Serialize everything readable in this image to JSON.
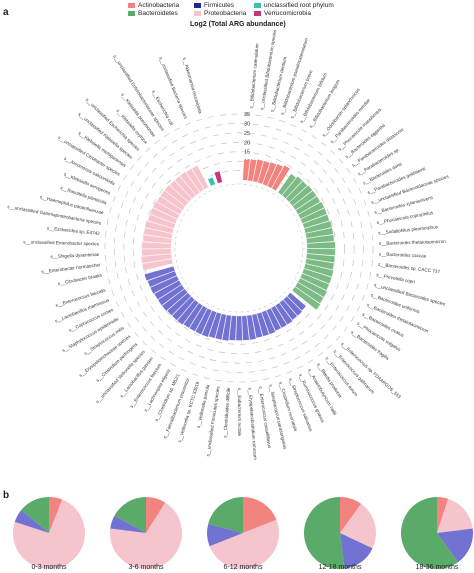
{
  "panel_labels": {
    "a": "a",
    "b": "b"
  },
  "legend": [
    {
      "label": "Actinobacteria",
      "color": "#f2837f"
    },
    {
      "label": "Bacteroidetes",
      "color": "#5aab6a"
    },
    {
      "label": "Firmicutes",
      "color": "#1e2a8f"
    },
    {
      "label": "Proteobacteria",
      "color": "#f6c4cc"
    },
    {
      "label": "unclassified root phylum",
      "color": "#39c0b0"
    },
    {
      "label": "Verrucomicrobia",
      "color": "#c03a7a"
    }
  ],
  "chart_data": [
    {
      "type": "bar",
      "layout": "circular",
      "title": "Log2 (Total ARG abundance)",
      "ylim": [
        0,
        35
      ],
      "yticks": [
        5,
        10,
        15,
        20,
        25,
        30,
        35
      ],
      "tick_labels": [
        "5",
        "10",
        "15",
        "20",
        "25",
        "30",
        "35"
      ],
      "grid": true,
      "series": [
        {
          "name": "Actinobacteria",
          "color": "#f2837f",
          "categories": [
            "s__Bifidobacterium catenulatum",
            "s__unclassified Bifidobacterium species",
            "s__Bifidobacterium dentium",
            "s__Bifidobacterium pseudocatenulatum",
            "s__Bifidobacterium breve",
            "s__Bifidobacterium bifidum",
            "s__Bifidobacterium longum"
          ],
          "values": [
            11,
            11.5,
            12,
            12,
            12.5,
            13,
            14
          ]
        },
        {
          "name": "Bacteroidetes",
          "color": "#7dbb86",
          "categories": [
            "s__Odoribacter splanchnicus",
            "s__Parabacteroides merdae",
            "s__Phocaeicola massiliensis",
            "s__Bacteroides eggerthii",
            "s__Parabacteroides distasonis",
            "s__Parabacteroides sp.",
            "s__Bacteroides dorei",
            "s__Parabacteroides goldsteinii",
            "s__unclassified Bacteroidaceae species",
            "s__Bacteroides xylanisolvens",
            "s__Phocaeicola coprophilus",
            "s__Sodaliphilus pleomorphus",
            "s__Bacteroides thetaiotaomicron",
            "s__Bacteroides caccae",
            "s__Bacteroides sp. CACC 737",
            "s__Prevotella copri",
            "s__unclassified Bacteroides species",
            "s__Bacteroides uniformis",
            "s__Bacteroides thetaiotaomicron",
            "s__Bacteroides ovatus",
            "s__Phocaeicola vulgatus",
            "s__Bacteroides fragilis"
          ],
          "values": [
            12,
            13,
            13,
            13.5,
            13.5,
            13.5,
            14,
            14,
            14,
            14.5,
            14.5,
            14.5,
            15,
            15,
            15,
            15,
            15.5,
            15.5,
            15.5,
            16,
            16,
            16.5
          ]
        },
        {
          "name": "Firmicutes",
          "color": "#7172d1",
          "categories": [
            "s__Enterococcus sp. FDAARGOS_553",
            "s__Enterococcus gallinarum",
            "s__Enterococcus avium",
            "s__Blautia producta",
            "s__Anaerobutyricum hallii",
            "s__Ruminococcus gnavus",
            "s__Streptococcus salivarius",
            "s__Clostridium neonatale",
            "s__Streptococcus parasanguinis",
            "s__Enterococcus casseliflavus",
            "s__Erysipelatoclostridium ramosum",
            "s__Eubacterium rectale",
            "s__Clostridioides difficile",
            "s__unclassified Firmicutes species",
            "s__Veillonella parvula",
            "s__Veillonella sp. KCTC 33019",
            "s__Faecalibacterium prausnitzii",
            "s__Clostridium sp. M62/1",
            "s__Lachnospira eligens",
            "s__Enterococcus faecium",
            "s__Lactobacillus gasseri",
            "s__unclassified Veillonella species",
            "s__Clostridium perfringens",
            "s__Erysipelotrichaceae species",
            "s__Streptococcus mitis",
            "s__Staphylococcus epidermidis",
            "s__Coprococcus comes",
            "s__Lactobacillus rhamnosus",
            "s__Enterococcus faecalis"
          ],
          "values": [
            11,
            11.5,
            11.5,
            12,
            12,
            12,
            12.5,
            12.5,
            12.5,
            13,
            13,
            13,
            13,
            13.5,
            13.5,
            13.5,
            14,
            14,
            14,
            14,
            14.5,
            14.5,
            14.5,
            15,
            15,
            15,
            15.5,
            15.5,
            16
          ]
        },
        {
          "name": "Proteobacteria",
          "color": "#f6c4cc",
          "categories": [
            "s__Citrobacter braakii",
            "s__Enterobacter hormaechei",
            "s__Shigella dysenteriae",
            "s__unclassified Enterobacter species",
            "s__Escherichia sp. E4742",
            "s__unclassified Gammaproteobacteria species",
            "s__Haemophilus parainfluenzae",
            "s__Raoultella planticola",
            "s__Klebsiella aerogenes",
            "s__Aeromonas salmonicida",
            "s__unclassified Citrobacter species",
            "s__Klebsiella michiganensis",
            "s__unclassified Klebsiella species",
            "s__unclassified Escherichia species",
            "s__Klebsiella oxytoca",
            "s__Klebsiella pneumoniae",
            "s__unclassified Enterobacteriaceae species",
            "s__Escherichia coli"
          ],
          "values": [
            16,
            16,
            15.5,
            15.5,
            15,
            15,
            15,
            14.5,
            14.5,
            14.5,
            14,
            14,
            14,
            13.5,
            13.5,
            13.5,
            13,
            13
          ]
        },
        {
          "name": "unclassified root phylum",
          "color": "#39c0b0",
          "categories": [
            "s__unclassified Bacteria species"
          ],
          "values": [
            4
          ]
        },
        {
          "name": "Verrucomicrobia",
          "color": "#c03a7a",
          "categories": [
            "s__Akkermansia muciniphila"
          ],
          "values": [
            6
          ]
        }
      ]
    },
    {
      "type": "pie",
      "name": "0-3 months",
      "label": "0-3 months",
      "slices": [
        {
          "series": "Actinobacteria",
          "value": 6,
          "color": "#f2837f"
        },
        {
          "series": "Proteobacteria",
          "value": 74,
          "color": "#f6c4cc"
        },
        {
          "series": "Firmicutes",
          "value": 6,
          "color": "#7172d1"
        },
        {
          "series": "Bacteroidetes",
          "value": 14,
          "color": "#5aab6a"
        }
      ]
    },
    {
      "type": "pie",
      "name": "3-6 months",
      "label": "3-6 months",
      "slices": [
        {
          "series": "Actinobacteria",
          "value": 9,
          "color": "#f2837f"
        },
        {
          "series": "Proteobacteria",
          "value": 68,
          "color": "#f6c4cc"
        },
        {
          "series": "Firmicutes",
          "value": 6,
          "color": "#7172d1"
        },
        {
          "series": "Bacteroidetes",
          "value": 17,
          "color": "#5aab6a"
        }
      ]
    },
    {
      "type": "pie",
      "name": "6-12 months",
      "label": "6-12 months",
      "slices": [
        {
          "series": "Actinobacteria",
          "value": 19,
          "color": "#f2837f"
        },
        {
          "series": "Proteobacteria",
          "value": 50,
          "color": "#f6c4cc"
        },
        {
          "series": "Firmicutes",
          "value": 10,
          "color": "#7172d1"
        },
        {
          "series": "Bacteroidetes",
          "value": 21,
          "color": "#5aab6a"
        }
      ]
    },
    {
      "type": "pie",
      "name": "12-18 months",
      "label": "12-18 months",
      "slices": [
        {
          "series": "Actinobacteria",
          "value": 10,
          "color": "#f2837f"
        },
        {
          "series": "Proteobacteria",
          "value": 22,
          "color": "#f6c4cc"
        },
        {
          "series": "Firmicutes",
          "value": 16,
          "color": "#7172d1"
        },
        {
          "series": "Bacteroidetes",
          "value": 52,
          "color": "#5aab6a"
        }
      ]
    },
    {
      "type": "pie",
      "name": "18-36 months",
      "label": "18-36 months",
      "slices": [
        {
          "series": "Actinobacteria",
          "value": 5,
          "color": "#f2837f"
        },
        {
          "series": "Proteobacteria",
          "value": 18,
          "color": "#f6c4cc"
        },
        {
          "series": "Firmicutes",
          "value": 17,
          "color": "#7172d1"
        },
        {
          "series": "Bacteroidetes",
          "value": 60,
          "color": "#5aab6a"
        }
      ]
    }
  ]
}
